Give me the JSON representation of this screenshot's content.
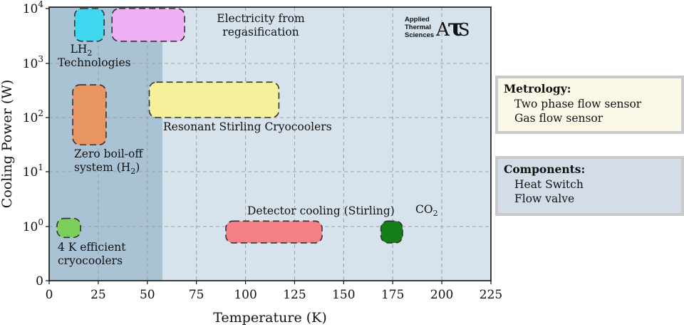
{
  "chart_data": {
    "type": "range-bubble",
    "xlabel": "Temperature (K)",
    "ylabel": "Cooling Power (W)",
    "xlim": [
      0,
      225
    ],
    "x_ticks": [
      0,
      25,
      50,
      75,
      100,
      125,
      150,
      175,
      200,
      225
    ],
    "y_scale": "log (with 0 at bottom)",
    "y_ticks": [
      "0",
      "10^0",
      "10^1",
      "10^2",
      "10^3",
      "10^4"
    ],
    "grid": true,
    "shaded_region": {
      "x": [
        0,
        51
      ],
      "color": "#a9c2d4"
    },
    "background_color": "#d6e2ec",
    "regions": [
      {
        "name": "LH2 Technologies",
        "label": "LH",
        "sub": "2",
        "label2": "Technologies",
        "x": [
          13,
          28
        ],
        "y_exp": [
          3.4,
          4.0
        ],
        "color": "#40d8ee"
      },
      {
        "name": "Electricity from regasification",
        "label": "Electricity from",
        "label2": "regasification",
        "x": [
          32,
          69
        ],
        "y_exp": [
          3.4,
          4.0
        ],
        "color": "#f0b0f4"
      },
      {
        "name": "Zero boil-off system (H2)",
        "label": "Zero boil-off",
        "label2": "system (H",
        "sub": "2",
        "label3": ")",
        "x": [
          12,
          29
        ],
        "y_exp": [
          1.5,
          2.6
        ],
        "color": "#e99561"
      },
      {
        "name": "Resonant Stirling Cryocoolers",
        "label": "Resonant Stirling Cryocoolers",
        "x": [
          51,
          117
        ],
        "y_exp": [
          2.0,
          2.65
        ],
        "color": "#f4f09c"
      },
      {
        "name": "4 K efficient cryocoolers",
        "label": "4 K efficient",
        "label2": "cryocoolers",
        "x": [
          4,
          16
        ],
        "y_exp": [
          -0.2,
          0.15
        ],
        "color": "#7ccf5a"
      },
      {
        "name": "Detector cooling (Stirling)",
        "label": "Detector cooling (Stirling)",
        "x": [
          90,
          139
        ],
        "y_exp": [
          -0.3,
          0.1
        ],
        "color": "#f47f85"
      },
      {
        "name": "CO2",
        "label": "CO",
        "sub": "2",
        "x": [
          169,
          180
        ],
        "y_exp": [
          -0.3,
          0.1
        ],
        "color": "#167e16"
      }
    ]
  },
  "logo": {
    "line1": "Applied",
    "line2": "Thermal",
    "line3": "Sciences",
    "mark": "ATS"
  },
  "metrology": {
    "title": "Metrology:",
    "items": [
      "Two phase flow sensor",
      "Gas flow sensor"
    ]
  },
  "components": {
    "title": "Components:",
    "items": [
      "Heat Switch",
      "Flow valve"
    ]
  }
}
